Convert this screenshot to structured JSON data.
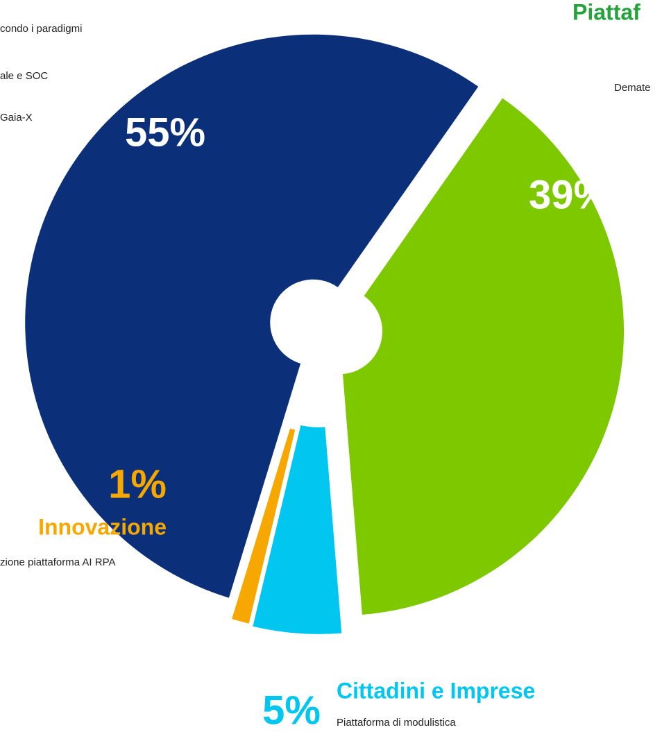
{
  "chart_data": {
    "type": "pie",
    "categories": [
      null,
      "Piattaf",
      "Cittadini e Imprese",
      "Innovazione"
    ],
    "values": [
      55,
      39,
      5,
      1
    ],
    "value_labels": [
      "55%",
      "39%",
      "5%",
      "1%"
    ],
    "colors": [
      "#0b2f78",
      "#7ec800",
      "#00c6f0",
      "#f6a800"
    ],
    "descriptions": [
      [
        "condo i paradigmi",
        "ale e SOC",
        "Gaia-X"
      ],
      [
        "Demate"
      ],
      [
        "Piattaforma di modulistica"
      ],
      [
        "zione piattaforma AI RPA"
      ]
    ]
  }
}
